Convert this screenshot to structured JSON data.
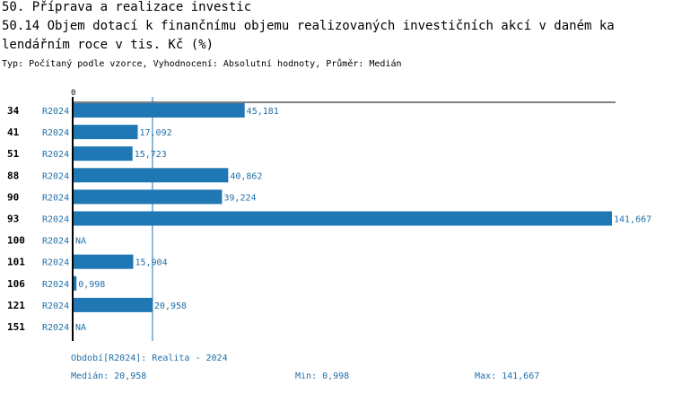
{
  "header": {
    "title_line1": "50. Příprava a realizace investic",
    "title_line2": "50.14 Objem dotací k finančnímu objemu realizovaných investičních akcí v daném ka",
    "title_line3": "lendářním roce v tis. Kč (%)",
    "subtitle": "Typ: Počítaný podle vzorce, Vyhodnocení: Absolutní hodnoty, Průměr: Medián"
  },
  "colors": {
    "bar": "#1f77b4",
    "label": "#1f6fa8",
    "axis": "#000000",
    "median_line": "#1f77b4"
  },
  "chart_data": {
    "type": "bar",
    "orientation": "horizontal",
    "axis_zero_label": "0",
    "xlim": [
      0,
      141.667
    ],
    "median_value": 20.958,
    "rows": [
      {
        "id": "34",
        "period": "R2024",
        "value": 45.181,
        "label": "45,181"
      },
      {
        "id": "41",
        "period": "R2024",
        "value": 17.092,
        "label": "17,092"
      },
      {
        "id": "51",
        "period": "R2024",
        "value": 15.723,
        "label": "15,723"
      },
      {
        "id": "88",
        "period": "R2024",
        "value": 40.862,
        "label": "40,862"
      },
      {
        "id": "90",
        "period": "R2024",
        "value": 39.224,
        "label": "39,224"
      },
      {
        "id": "93",
        "period": "R2024",
        "value": 141.667,
        "label": "141,667"
      },
      {
        "id": "100",
        "period": "R2024",
        "value": null,
        "label": "NA"
      },
      {
        "id": "101",
        "period": "R2024",
        "value": 15.904,
        "label": "15,904"
      },
      {
        "id": "106",
        "period": "R2024",
        "value": 0.998,
        "label": "0,998"
      },
      {
        "id": "121",
        "period": "R2024",
        "value": 20.958,
        "label": "20,958"
      },
      {
        "id": "151",
        "period": "R2024",
        "value": null,
        "label": "NA"
      }
    ]
  },
  "footer": {
    "period_legend": "Období[R2024]: Realita - 2024",
    "median": "Medián: 20,958",
    "min": "Min: 0,998",
    "max": "Max: 141,667"
  }
}
